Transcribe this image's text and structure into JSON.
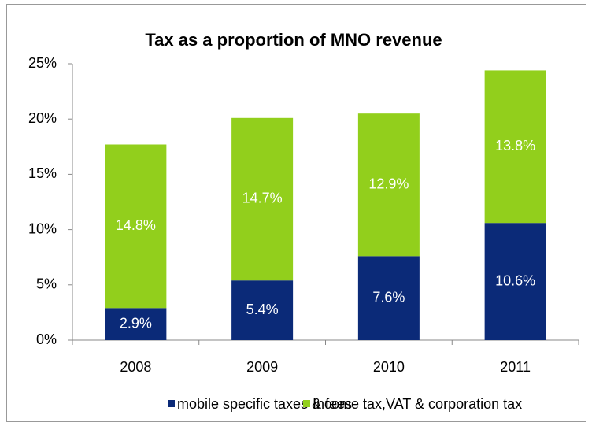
{
  "chart_data": {
    "type": "stacked_bar",
    "title": "Tax as a proportion of MNO revenue",
    "categories": [
      "2008",
      "2009",
      "2010",
      "2011"
    ],
    "series": [
      {
        "name": "mobile specific taxes & fees",
        "color": "#0b2a78",
        "values": [
          2.9,
          5.4,
          7.6,
          10.6
        ],
        "value_labels": [
          "2.9%",
          "5.4%",
          "7.6%",
          "10.6%"
        ]
      },
      {
        "name": "Income tax,VAT & corporation tax",
        "color": "#92cf1c",
        "values": [
          14.8,
          14.7,
          12.9,
          13.8
        ],
        "value_labels": [
          "14.8%",
          "14.7%",
          "12.9%",
          "13.8%"
        ]
      }
    ],
    "ylim": [
      0,
      25
    ],
    "yticks": [
      {
        "value": 0,
        "label": "0%"
      },
      {
        "value": 5,
        "label": "5%"
      },
      {
        "value": 10,
        "label": "10%"
      },
      {
        "value": 15,
        "label": "15%"
      },
      {
        "value": 20,
        "label": "20%"
      },
      {
        "value": 25,
        "label": "25%"
      }
    ],
    "grid": false,
    "legend": "bottom"
  }
}
